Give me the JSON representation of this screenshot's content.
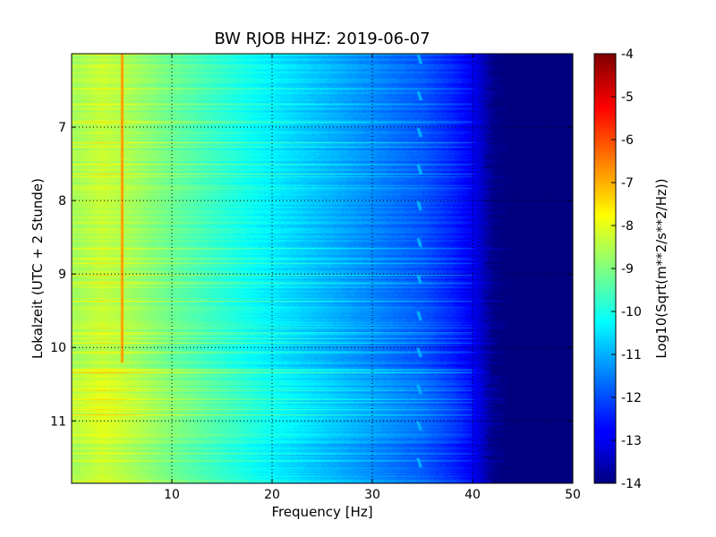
{
  "chart_data": {
    "type": "heatmap",
    "title": "BW RJOB HHZ: 2019-06-07",
    "xlabel": "Frequency [Hz]",
    "ylabel": "Lokalzeit (UTC + 2 Stunde)",
    "xlim": [
      0,
      50
    ],
    "ylim": [
      6.0,
      11.85
    ],
    "y_inverted": true,
    "grid": true,
    "x_ticks": [
      "10",
      "20",
      "30",
      "40",
      "50"
    ],
    "x_tick_values": [
      10,
      20,
      30,
      40,
      50
    ],
    "y_ticks": [
      "7",
      "8",
      "9",
      "10",
      "11"
    ],
    "y_tick_values": [
      7,
      8,
      9,
      10,
      11
    ],
    "colorbar": {
      "label": "Log10(Sqrt(m**2/s**2/Hz))",
      "colormap": "jet",
      "range": [
        -14,
        -4
      ],
      "ticks": [
        "-4",
        "-5",
        "-6",
        "-7",
        "-8",
        "-9",
        "-10",
        "-11",
        "-12",
        "-13",
        "-14"
      ],
      "tick_values": [
        -4,
        -5,
        -6,
        -7,
        -8,
        -9,
        -10,
        -11,
        -12,
        -13,
        -14
      ]
    },
    "spectrum_profile": {
      "frequency_hz": [
        0.5,
        3,
        5,
        10,
        15,
        20,
        25,
        30,
        35,
        38,
        40,
        42,
        44,
        50
      ],
      "log10_amplitude": [
        -8.6,
        -8.3,
        -8.5,
        -9.2,
        -9.8,
        -10.4,
        -10.9,
        -11.4,
        -11.9,
        -12.4,
        -12.9,
        -13.8,
        -14,
        -14
      ]
    },
    "features": {
      "persistent_line_hz": 5.0,
      "persistent_line_level": -6.8,
      "persistent_line_hours": [
        6.0,
        10.2
      ],
      "cutoff_hz": [
        41,
        44
      ]
    }
  }
}
